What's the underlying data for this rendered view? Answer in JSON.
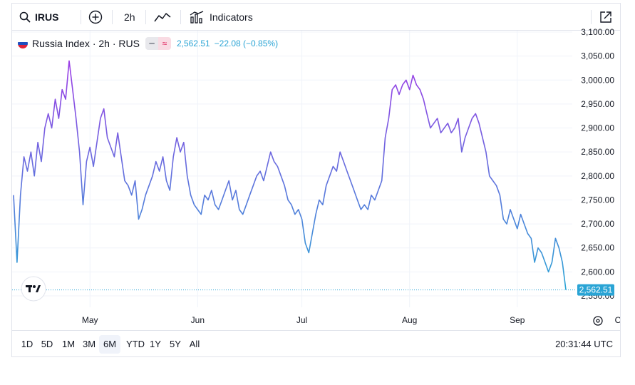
{
  "toolbar": {
    "symbol": "IRUS",
    "interval": "2h",
    "indicators_label": "Indicators"
  },
  "legend": {
    "title": "Russia Index · 2h · RUS",
    "price": "2,562.51",
    "change": "−22.08 (−0.85%)"
  },
  "ranges": [
    "1D",
    "5D",
    "1M",
    "3M",
    "6M",
    "YTD",
    "1Y",
    "5Y",
    "All"
  ],
  "active_range": "6M",
  "clock": "20:31:44 UTC",
  "colors": {
    "line_top": "#9c3ce6",
    "line_bottom": "#2aa4d5",
    "last_price_bg": "#2aa4d5",
    "grid": "#f0f3fa",
    "axis_text": "#131722"
  },
  "chart_data": {
    "type": "line",
    "xlabel": "",
    "ylabel": "",
    "ylim": [
      2550,
      3100
    ],
    "y_ticks": [
      "3,100.00",
      "3,050.00",
      "3,000.00",
      "2,950.00",
      "2,900.00",
      "2,850.00",
      "2,800.00",
      "2,750.00",
      "2,700.00",
      "2,650.00",
      "2,600.00",
      "2,550.00"
    ],
    "x_ticks": [
      {
        "label": "May",
        "date": "2024-05-01"
      },
      {
        "label": "Jun",
        "date": "2024-06-01"
      },
      {
        "label": "Jul",
        "date": "2024-07-01"
      },
      {
        "label": "Aug",
        "date": "2024-08-01"
      },
      {
        "label": "Sep",
        "date": "2024-09-01"
      },
      {
        "label": "Oct",
        "date": "2024-10-01"
      }
    ],
    "last_price_label": "2,562.51",
    "last_value": 2562.51,
    "series": [
      {
        "points": [
          [
            "2024-04-09",
            2760
          ],
          [
            "2024-04-10",
            2620
          ],
          [
            "2024-04-11",
            2760
          ],
          [
            "2024-04-12",
            2840
          ],
          [
            "2024-04-13",
            2810
          ],
          [
            "2024-04-14",
            2850
          ],
          [
            "2024-04-15",
            2800
          ],
          [
            "2024-04-16",
            2870
          ],
          [
            "2024-04-17",
            2830
          ],
          [
            "2024-04-18",
            2900
          ],
          [
            "2024-04-19",
            2930
          ],
          [
            "2024-04-20",
            2900
          ],
          [
            "2024-04-21",
            2960
          ],
          [
            "2024-04-22",
            2920
          ],
          [
            "2024-04-23",
            2980
          ],
          [
            "2024-04-24",
            2960
          ],
          [
            "2024-04-25",
            3040
          ],
          [
            "2024-04-26",
            2980
          ],
          [
            "2024-04-27",
            2920
          ],
          [
            "2024-04-28",
            2850
          ],
          [
            "2024-04-29",
            2740
          ],
          [
            "2024-04-30",
            2830
          ],
          [
            "2024-05-01",
            2860
          ],
          [
            "2024-05-02",
            2820
          ],
          [
            "2024-05-03",
            2870
          ],
          [
            "2024-05-04",
            2920
          ],
          [
            "2024-05-05",
            2940
          ],
          [
            "2024-05-06",
            2880
          ],
          [
            "2024-05-07",
            2860
          ],
          [
            "2024-05-08",
            2840
          ],
          [
            "2024-05-09",
            2890
          ],
          [
            "2024-05-10",
            2840
          ],
          [
            "2024-05-11",
            2790
          ],
          [
            "2024-05-12",
            2780
          ],
          [
            "2024-05-13",
            2760
          ],
          [
            "2024-05-14",
            2790
          ],
          [
            "2024-05-15",
            2710
          ],
          [
            "2024-05-16",
            2730
          ],
          [
            "2024-05-17",
            2760
          ],
          [
            "2024-05-18",
            2780
          ],
          [
            "2024-05-19",
            2800
          ],
          [
            "2024-05-20",
            2830
          ],
          [
            "2024-05-21",
            2810
          ],
          [
            "2024-05-22",
            2840
          ],
          [
            "2024-05-23",
            2790
          ],
          [
            "2024-05-24",
            2770
          ],
          [
            "2024-05-25",
            2840
          ],
          [
            "2024-05-26",
            2880
          ],
          [
            "2024-05-27",
            2850
          ],
          [
            "2024-05-28",
            2870
          ],
          [
            "2024-05-29",
            2800
          ],
          [
            "2024-05-30",
            2760
          ],
          [
            "2024-05-31",
            2740
          ],
          [
            "2024-06-01",
            2730
          ],
          [
            "2024-06-02",
            2720
          ],
          [
            "2024-06-03",
            2760
          ],
          [
            "2024-06-04",
            2750
          ],
          [
            "2024-06-05",
            2770
          ],
          [
            "2024-06-06",
            2740
          ],
          [
            "2024-06-07",
            2730
          ],
          [
            "2024-06-08",
            2750
          ],
          [
            "2024-06-09",
            2770
          ],
          [
            "2024-06-10",
            2790
          ],
          [
            "2024-06-11",
            2750
          ],
          [
            "2024-06-12",
            2770
          ],
          [
            "2024-06-13",
            2730
          ],
          [
            "2024-06-14",
            2720
          ],
          [
            "2024-06-15",
            2740
          ],
          [
            "2024-06-16",
            2760
          ],
          [
            "2024-06-17",
            2780
          ],
          [
            "2024-06-18",
            2800
          ],
          [
            "2024-06-19",
            2810
          ],
          [
            "2024-06-20",
            2790
          ],
          [
            "2024-06-21",
            2820
          ],
          [
            "2024-06-22",
            2850
          ],
          [
            "2024-06-23",
            2830
          ],
          [
            "2024-06-24",
            2820
          ],
          [
            "2024-06-25",
            2800
          ],
          [
            "2024-06-26",
            2780
          ],
          [
            "2024-06-27",
            2750
          ],
          [
            "2024-06-28",
            2740
          ],
          [
            "2024-06-29",
            2720
          ],
          [
            "2024-06-30",
            2730
          ],
          [
            "2024-07-01",
            2710
          ],
          [
            "2024-07-02",
            2660
          ],
          [
            "2024-07-03",
            2640
          ],
          [
            "2024-07-04",
            2680
          ],
          [
            "2024-07-05",
            2720
          ],
          [
            "2024-07-06",
            2750
          ],
          [
            "2024-07-07",
            2740
          ],
          [
            "2024-07-08",
            2780
          ],
          [
            "2024-07-09",
            2800
          ],
          [
            "2024-07-10",
            2820
          ],
          [
            "2024-07-11",
            2810
          ],
          [
            "2024-07-12",
            2850
          ],
          [
            "2024-07-13",
            2830
          ],
          [
            "2024-07-14",
            2810
          ],
          [
            "2024-07-15",
            2790
          ],
          [
            "2024-07-16",
            2770
          ],
          [
            "2024-07-17",
            2750
          ],
          [
            "2024-07-18",
            2730
          ],
          [
            "2024-07-19",
            2740
          ],
          [
            "2024-07-20",
            2730
          ],
          [
            "2024-07-21",
            2760
          ],
          [
            "2024-07-22",
            2750
          ],
          [
            "2024-07-23",
            2770
          ],
          [
            "2024-07-24",
            2790
          ],
          [
            "2024-07-25",
            2880
          ],
          [
            "2024-07-26",
            2920
          ],
          [
            "2024-07-27",
            2980
          ],
          [
            "2024-07-28",
            2990
          ],
          [
            "2024-07-29",
            2970
          ],
          [
            "2024-07-30",
            2990
          ],
          [
            "2024-07-31",
            3000
          ],
          [
            "2024-08-01",
            2980
          ],
          [
            "2024-08-02",
            3010
          ],
          [
            "2024-08-03",
            2990
          ],
          [
            "2024-08-04",
            2980
          ],
          [
            "2024-08-05",
            2960
          ],
          [
            "2024-08-06",
            2930
          ],
          [
            "2024-08-07",
            2900
          ],
          [
            "2024-08-08",
            2910
          ],
          [
            "2024-08-09",
            2920
          ],
          [
            "2024-08-10",
            2890
          ],
          [
            "2024-08-11",
            2900
          ],
          [
            "2024-08-12",
            2910
          ],
          [
            "2024-08-13",
            2890
          ],
          [
            "2024-08-14",
            2900
          ],
          [
            "2024-08-15",
            2920
          ],
          [
            "2024-08-16",
            2850
          ],
          [
            "2024-08-17",
            2880
          ],
          [
            "2024-08-18",
            2900
          ],
          [
            "2024-08-19",
            2920
          ],
          [
            "2024-08-20",
            2930
          ],
          [
            "2024-08-21",
            2910
          ],
          [
            "2024-08-22",
            2880
          ],
          [
            "2024-08-23",
            2850
          ],
          [
            "2024-08-24",
            2800
          ],
          [
            "2024-08-25",
            2790
          ],
          [
            "2024-08-26",
            2780
          ],
          [
            "2024-08-27",
            2760
          ],
          [
            "2024-08-28",
            2710
          ],
          [
            "2024-08-29",
            2700
          ],
          [
            "2024-08-30",
            2730
          ],
          [
            "2024-08-31",
            2710
          ],
          [
            "2024-09-01",
            2690
          ],
          [
            "2024-09-02",
            2720
          ],
          [
            "2024-09-03",
            2700
          ],
          [
            "2024-09-04",
            2680
          ],
          [
            "2024-09-05",
            2670
          ],
          [
            "2024-09-06",
            2620
          ],
          [
            "2024-09-07",
            2650
          ],
          [
            "2024-09-08",
            2640
          ],
          [
            "2024-09-09",
            2620
          ],
          [
            "2024-09-10",
            2600
          ],
          [
            "2024-09-11",
            2620
          ],
          [
            "2024-09-12",
            2670
          ],
          [
            "2024-09-13",
            2650
          ],
          [
            "2024-09-14",
            2620
          ],
          [
            "2024-09-15",
            2562.51
          ]
        ]
      }
    ]
  }
}
